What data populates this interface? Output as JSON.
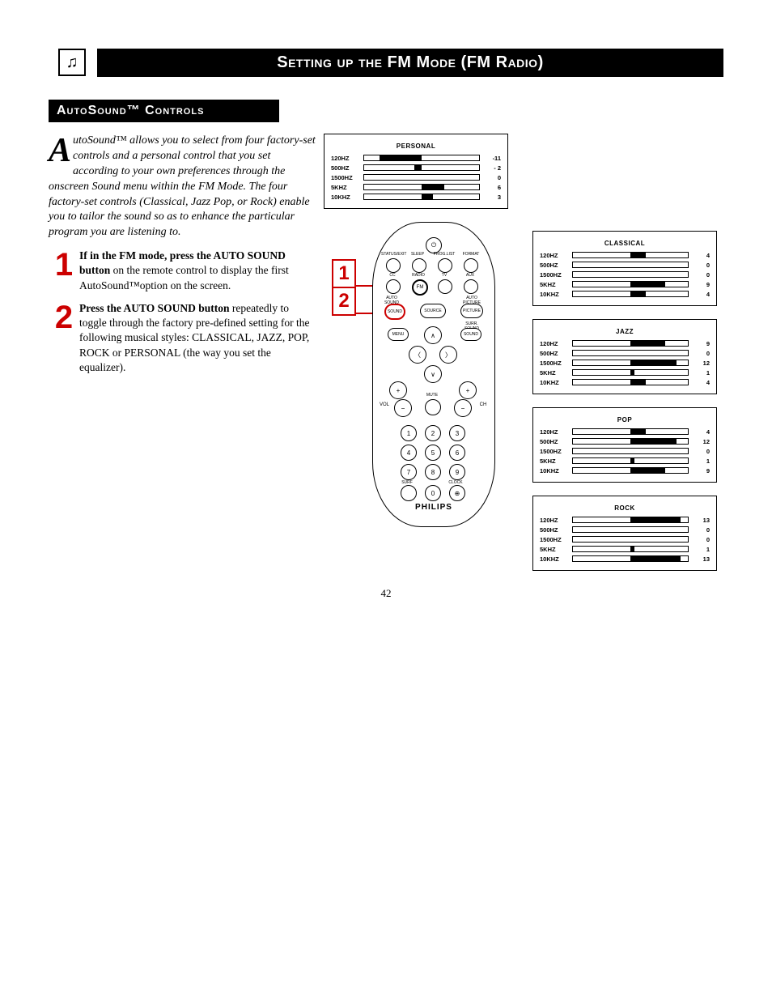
{
  "page_number": "42",
  "title": "Setting up the FM Mode (FM Radio)",
  "section_title": "AutoSound™ Controls",
  "intro_first_letter": "A",
  "intro_text": "utoSound™ allows you to select from four factory-set controls and a personal control that you set according to your own preferences through the onscreen Sound menu within the FM Mode. The four factory-set controls (Classical, Jazz Pop, or Rock) enable you to tailor the sound so as to enhance the particular program you are listening to.",
  "steps": [
    {
      "num": "1",
      "bold": "If in the FM mode, press the AUTO SOUND button",
      "rest": " on the remote control to display the first AutoSound™option on the screen."
    },
    {
      "num": "2",
      "bold": "Press the AUTO SOUND button",
      "rest": " repeatedly to toggle through the factory pre-defined setting for the following musical styles: CLASSICAL, JAZZ, POP, ROCK or PERSONAL (the way you set the equalizer)."
    }
  ],
  "eq_freqs": [
    "120HZ",
    "500HZ",
    "1500HZ",
    "5KHZ",
    "10KHZ"
  ],
  "eq_range": 15,
  "presets": {
    "personal": {
      "title": "PERSONAL",
      "values": [
        "-11",
        "- 2",
        "0",
        "6",
        "3"
      ],
      "nums": [
        -11,
        -2,
        0,
        6,
        3
      ]
    },
    "classical": {
      "title": "CLASSICAL",
      "values": [
        "4",
        "0",
        "0",
        "9",
        "4"
      ],
      "nums": [
        4,
        0,
        0,
        9,
        4
      ]
    },
    "jazz": {
      "title": "JAZZ",
      "values": [
        "9",
        "0",
        "12",
        "1",
        "4"
      ],
      "nums": [
        9,
        0,
        12,
        1,
        4
      ]
    },
    "pop": {
      "title": "POP",
      "values": [
        "4",
        "12",
        "0",
        "1",
        "9"
      ],
      "nums": [
        4,
        12,
        0,
        1,
        9
      ]
    },
    "rock": {
      "title": "ROCK",
      "values": [
        "13",
        "0",
        "0",
        "1",
        "13"
      ],
      "nums": [
        13,
        0,
        0,
        1,
        13
      ]
    }
  },
  "remote": {
    "brand": "PHILIPS",
    "row1_labels": [
      "STATUS/EXIT",
      "SLEEP",
      "PROG.LIST",
      "FORMAT"
    ],
    "row2_labels": [
      "CC",
      "RADIO",
      "TV",
      "AUX"
    ],
    "auto_sound": "AUTO SOUND",
    "source": "SOURCE",
    "auto_picture": "AUTO PICTURE",
    "menu": "MENU",
    "surr_sound": "SURR. SOUND",
    "mute": "MUTE",
    "vol": "VOL",
    "ch": "CH",
    "surf": "SURF",
    "clock": "CLOCK",
    "digits": [
      "1",
      "2",
      "3",
      "4",
      "5",
      "6",
      "7",
      "8",
      "9",
      "0"
    ]
  },
  "colors": {
    "accent": "#cc0000",
    "black": "#000000",
    "white": "#ffffff"
  }
}
